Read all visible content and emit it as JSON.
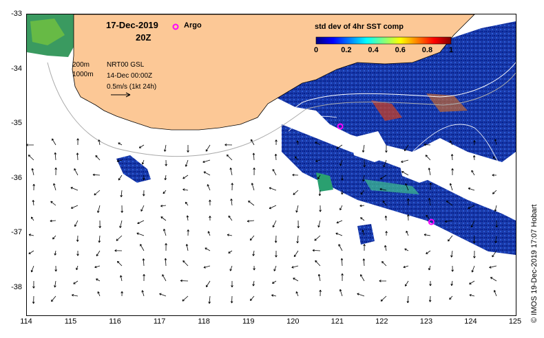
{
  "map": {
    "date": "17-Dec-2019",
    "time": "20Z",
    "argo_label": "Argo",
    "legend": {
      "title": "std dev of 4hr SST comp",
      "ticks": [
        "0",
        "0.2",
        "0.4",
        "0.6",
        "0.8",
        "1"
      ],
      "colors": [
        "#00007f",
        "#0000ff",
        "#0080ff",
        "#00ffff",
        "#80ff80",
        "#ffff00",
        "#ff8000",
        "#ff0000",
        "#7f0000"
      ]
    },
    "depth_labels": [
      "200m",
      "1000m"
    ],
    "current_info": [
      "NRT00 GSL",
      "14-Dec 00:00Z",
      "0.5m/s (1kt 24h)"
    ],
    "credit": "© IMOS 19-Dec-2019 17:07 Hobart",
    "x_ticks": [
      "114",
      "115",
      "116",
      "117",
      "118",
      "119",
      "120",
      "121",
      "122",
      "123",
      "124",
      "125"
    ],
    "y_ticks": [
      "-33",
      "-34",
      "-35",
      "-36",
      "-37",
      "-38"
    ],
    "colors": {
      "land": "#fcc896",
      "argo": "#ff00ff",
      "contour_200": "#ffffff",
      "contour_1000": "#aaaaaa"
    },
    "argo_floats": [
      {
        "lon": 121.05,
        "lat": -35.05
      },
      {
        "lon": 123.1,
        "lat": -36.8
      }
    ]
  }
}
